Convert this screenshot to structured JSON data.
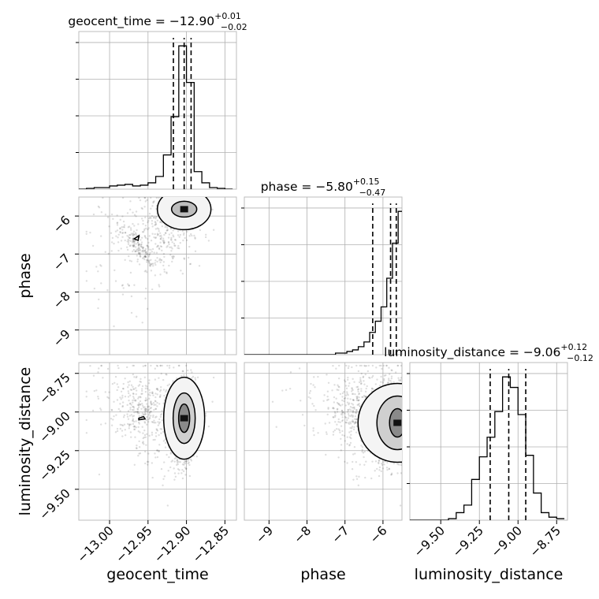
{
  "chart_data": {
    "type": "scatter",
    "subtype": "corner-plot",
    "parameters": [
      "geocent_time",
      "phase",
      "luminosity_distance"
    ],
    "axis_labels": [
      "geocent_time",
      "phase",
      "luminosity_distance"
    ],
    "titles": [
      {
        "param": "geocent_time",
        "prefix": "geocent_time = ",
        "value": "−12.90",
        "plus": "+0.01",
        "minus": "−0.02"
      },
      {
        "param": "phase",
        "prefix": "phase = ",
        "value": "−5.80",
        "plus": "+0.15",
        "minus": "−0.47"
      },
      {
        "param": "luminosity_distance",
        "prefix": "luminosity_distance = ",
        "value": "−9.06",
        "plus": "+0.12",
        "minus": "−0.12"
      }
    ],
    "ranges": {
      "geocent_time": [
        -13.04,
        -12.835
      ],
      "phase": [
        -9.65,
        -5.5
      ],
      "luminosity_distance": [
        -9.7,
        -8.68
      ]
    },
    "ticks": {
      "geocent_time": {
        "values": [
          -13.0,
          -12.95,
          -12.9,
          -12.85
        ],
        "labels": [
          "−13.00",
          "−12.95",
          "−12.90",
          "−12.85"
        ]
      },
      "phase_x": {
        "values": [
          -9,
          -8,
          -7,
          -6
        ],
        "labels": [
          "−9",
          "−8",
          "−7",
          "−6"
        ]
      },
      "phase_y": {
        "values": [
          -9,
          -8,
          -7,
          -6
        ],
        "labels": [
          "−9",
          "−8",
          "−7",
          "−6"
        ]
      },
      "luminosity_distance_x": {
        "values": [
          -9.5,
          -9.25,
          -9.0,
          -8.75
        ],
        "labels": [
          "−9.50",
          "−9.25",
          "−9.00",
          "−8.75"
        ]
      },
      "luminosity_distance_y": {
        "values": [
          -9.5,
          -9.25,
          -9.0,
          -8.75
        ],
        "labels": [
          "−9.50",
          "−9.25",
          "−9.00",
          "−8.75"
        ]
      }
    },
    "quantile_lines": {
      "geocent_time": [
        -12.917,
        -12.903,
        -12.894
      ],
      "phase": [
        -6.27,
        -5.8,
        -5.65
      ],
      "luminosity_distance": [
        -9.18,
        -9.06,
        -8.95
      ]
    },
    "histograms": {
      "geocent_time": {
        "edges": [
          -13.04,
          -13.03,
          -13.02,
          -13.01,
          -13.0,
          -12.99,
          -12.98,
          -12.97,
          -12.96,
          -12.95,
          -12.94,
          -12.93,
          -12.92,
          -12.91,
          -12.9,
          -12.89,
          -12.88,
          -12.87,
          -12.86,
          -12.85,
          -12.84
        ],
        "counts": [
          0,
          1,
          2,
          2,
          4,
          5,
          6,
          4,
          5,
          8,
          16,
          43,
          91,
          180,
          134,
          22,
          8,
          2,
          1,
          0
        ]
      },
      "phase": {
        "edges": [
          -9.65,
          -9.5,
          -9.35,
          -9.2,
          -9.05,
          -8.9,
          -8.75,
          -8.6,
          -8.45,
          -8.3,
          -8.15,
          -8.0,
          -7.85,
          -7.7,
          -7.55,
          -7.4,
          -7.25,
          -7.1,
          -6.95,
          -6.8,
          -6.65,
          -6.5,
          -6.35,
          -6.2,
          -6.05,
          -5.9,
          -5.75,
          -5.6,
          -5.5
        ],
        "counts": [
          0,
          0,
          0,
          0,
          0,
          0,
          0,
          0,
          0,
          0,
          0,
          0,
          0,
          0,
          0,
          0,
          1,
          1,
          2,
          3,
          5,
          8,
          14,
          21,
          30,
          48,
          70,
          90
        ]
      },
      "luminosity_distance": {
        "edges": [
          -9.7,
          -9.65,
          -9.6,
          -9.55,
          -9.5,
          -9.45,
          -9.4,
          -9.35,
          -9.3,
          -9.25,
          -9.2,
          -9.15,
          -9.1,
          -9.05,
          -9.0,
          -8.95,
          -8.9,
          -8.85,
          -8.8,
          -8.75,
          -8.7
        ],
        "counts": [
          0,
          0,
          0,
          0,
          0,
          1,
          5,
          10,
          27,
          42,
          55,
          72,
          95,
          88,
          70,
          43,
          18,
          5,
          2,
          1
        ]
      }
    }
  }
}
